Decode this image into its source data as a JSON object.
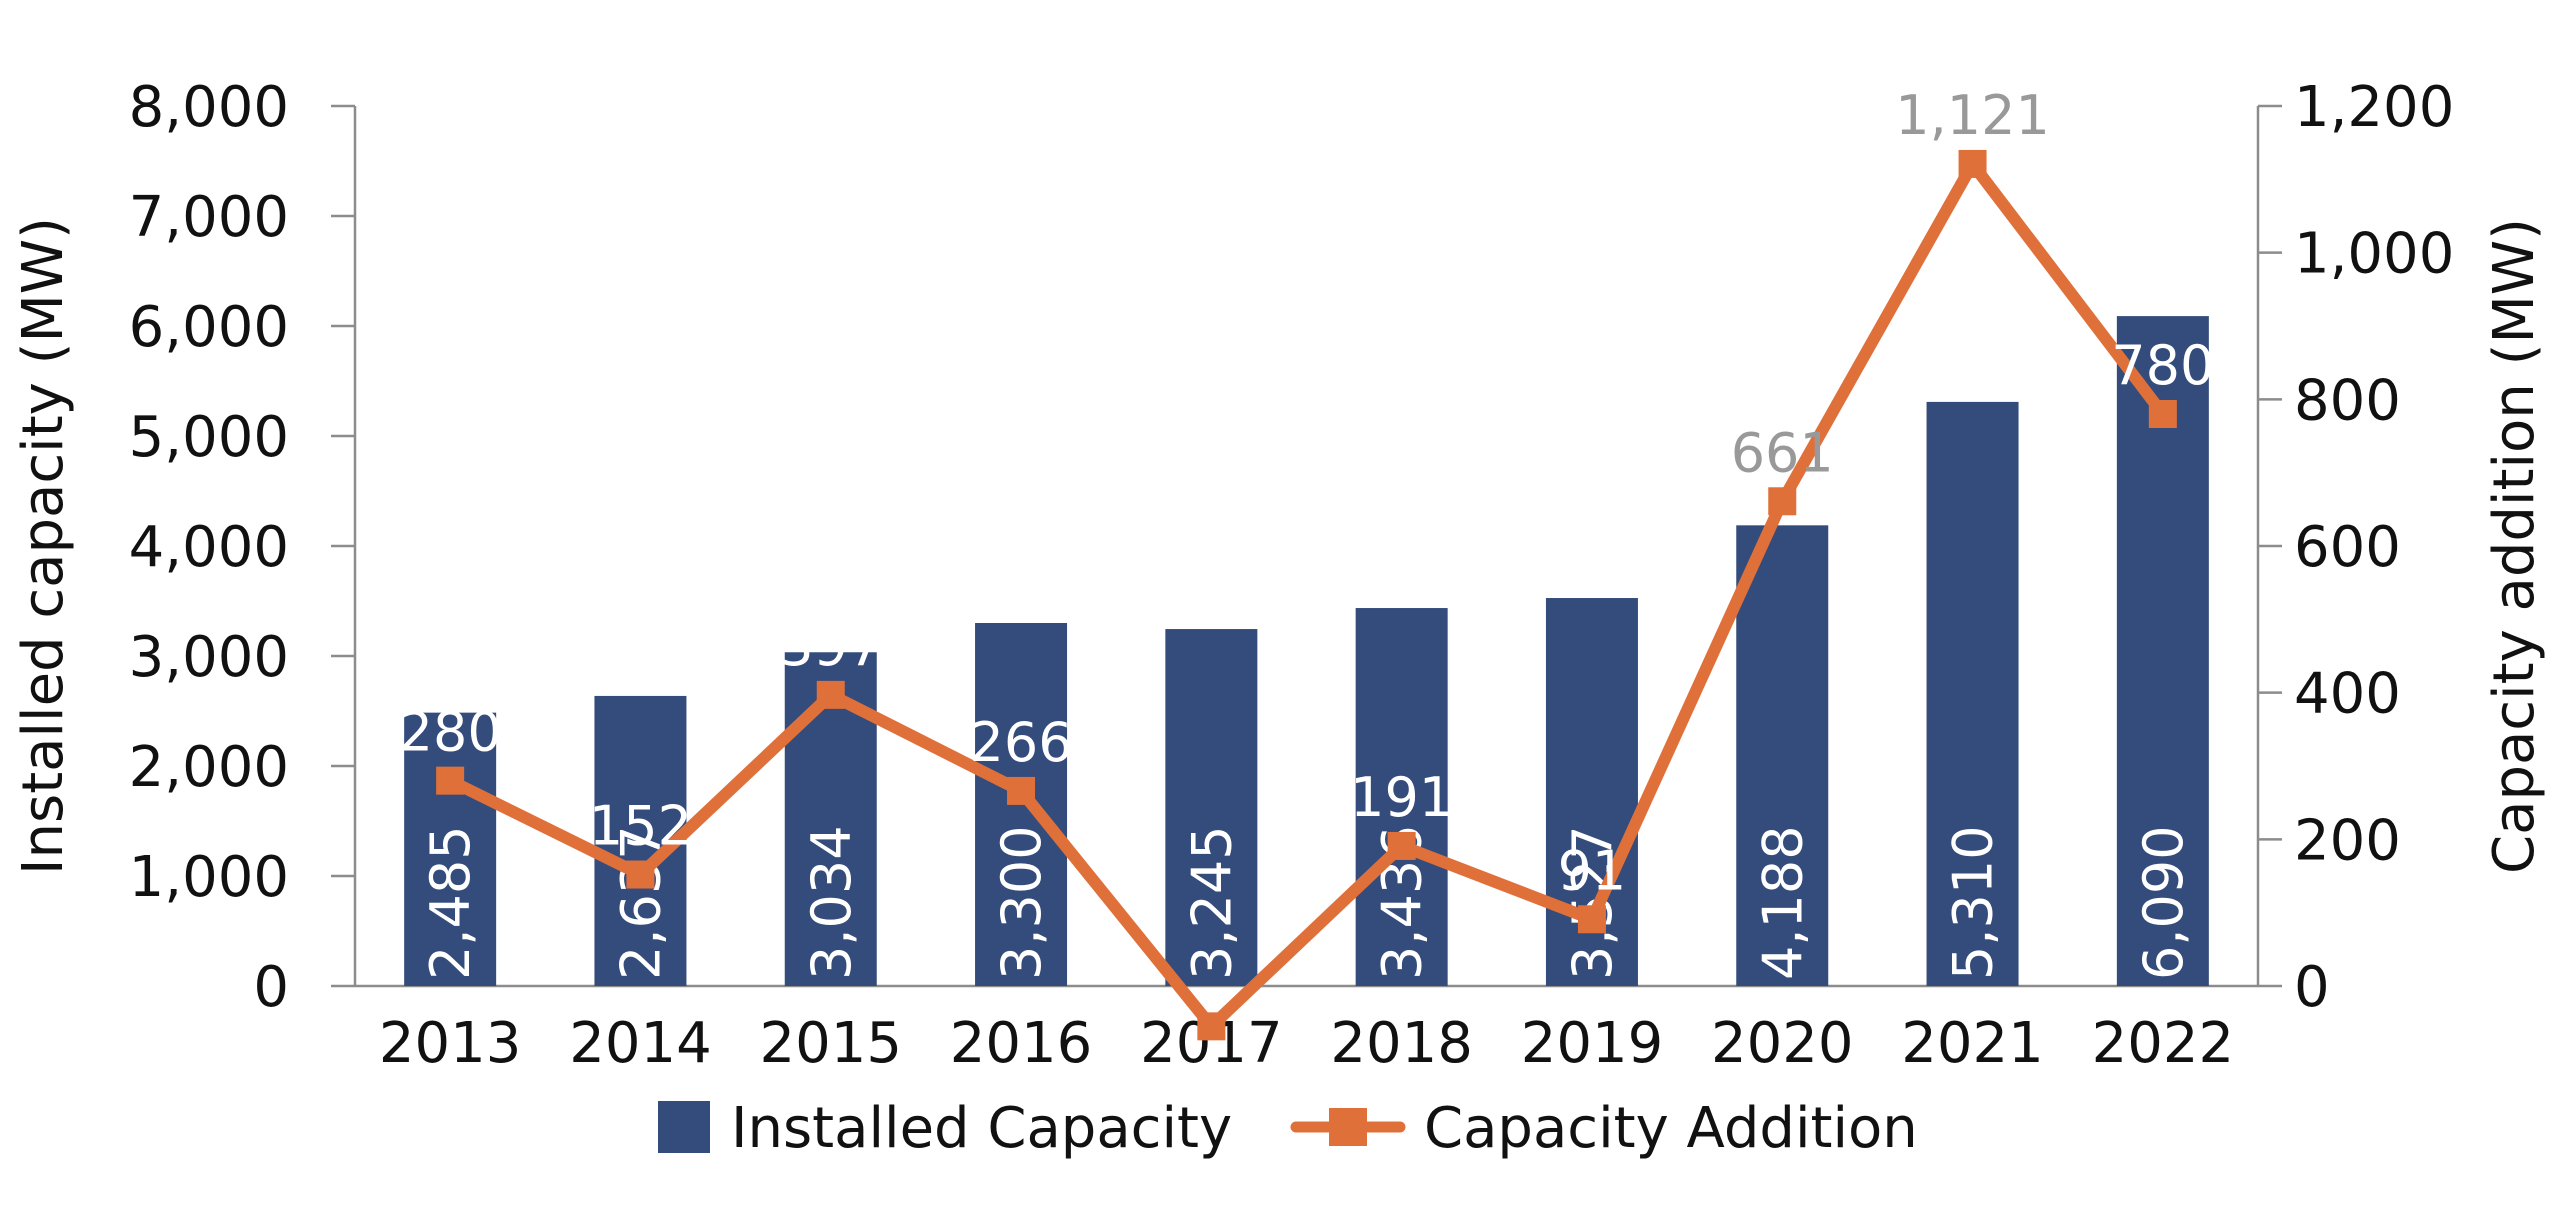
{
  "colors": {
    "bar": "#344c7b",
    "line": "#e0703a",
    "axis": "#8c8c8c",
    "text": "#111111",
    "label_on_bar": "#ffffff",
    "label_muted": "#999999"
  },
  "chart_data": {
    "type": "bar",
    "categories": [
      "2013",
      "2014",
      "2015",
      "2016",
      "2017",
      "2018",
      "2019",
      "2020",
      "2021",
      "2022"
    ],
    "series": [
      {
        "name": "Installed Capacity",
        "type": "bar",
        "axis": "left",
        "values": [
          2485,
          2637,
          3034,
          3300,
          3245,
          3436,
          3527,
          4188,
          5310,
          6090
        ],
        "labels": [
          "2,485",
          "2,637",
          "3,034",
          "3,300",
          "3,245",
          "3,436",
          "3,527",
          "4,188",
          "5,310",
          "6,090"
        ]
      },
      {
        "name": "Capacity Addition",
        "type": "line",
        "axis": "right",
        "values": [
          280,
          152,
          397,
          266,
          -55,
          191,
          91,
          661,
          1121,
          780
        ],
        "labels": [
          "280",
          "152",
          "397",
          "266",
          "",
          "191",
          "91",
          "661",
          "1,121",
          "780"
        ]
      }
    ],
    "y_left": {
      "label": "Installed capacity (MW)",
      "ylim": [
        0,
        8000
      ],
      "ticks": [
        "0",
        "1,000",
        "2,000",
        "3,000",
        "4,000",
        "5,000",
        "6,000",
        "7,000",
        "8,000"
      ]
    },
    "y_right": {
      "label": "Capacity addition (MW)",
      "ylim": [
        0,
        1200
      ],
      "ticks": [
        "0",
        "200",
        "400",
        "600",
        "800",
        "1,000",
        "1,200"
      ]
    },
    "grid": false,
    "legend": "bottom-center"
  }
}
